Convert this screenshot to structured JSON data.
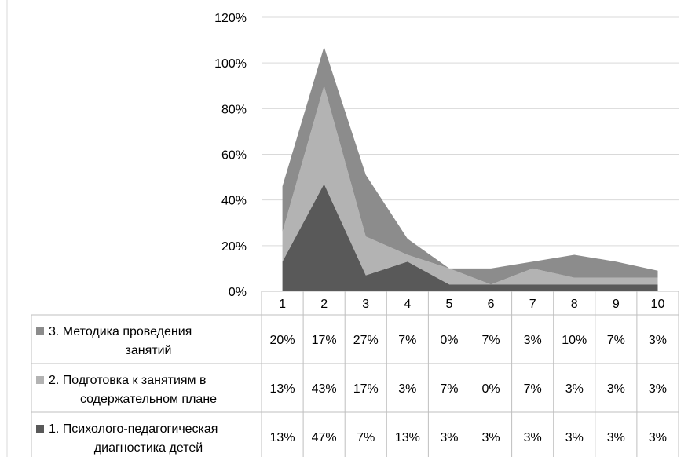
{
  "chart_data": {
    "type": "area",
    "stacked": true,
    "categories": [
      "1",
      "2",
      "3",
      "4",
      "5",
      "6",
      "7",
      "8",
      "9",
      "10"
    ],
    "ylim": [
      0,
      120
    ],
    "yticks": [
      "0%",
      "20%",
      "40%",
      "60%",
      "80%",
      "100%",
      "120%"
    ],
    "grid": true,
    "legend": "data-table",
    "series": [
      {
        "name_lines": [
          "3. Методика проведения",
          "занятий"
        ],
        "color": "#8c8c8c",
        "values": [
          20,
          17,
          27,
          7,
          0,
          7,
          3,
          10,
          7,
          3
        ],
        "labels": [
          "20%",
          "17%",
          "27%",
          "7%",
          "0%",
          "7%",
          "3%",
          "10%",
          "7%",
          "3%"
        ]
      },
      {
        "name_lines": [
          "2. Подготовка к занятиям в",
          "содержательном плане"
        ],
        "color": "#b3b3b3",
        "values": [
          13,
          43,
          17,
          3,
          7,
          0,
          7,
          3,
          3,
          3
        ],
        "labels": [
          "13%",
          "43%",
          "17%",
          "3%",
          "7%",
          "0%",
          "7%",
          "3%",
          "3%",
          "3%"
        ]
      },
      {
        "name_lines": [
          "1. Психолого-педагогическая",
          "диагностика детей"
        ],
        "color": "#595959",
        "values": [
          13,
          47,
          7,
          13,
          3,
          3,
          3,
          3,
          3,
          3
        ],
        "labels": [
          "13%",
          "47%",
          "7%",
          "13%",
          "3%",
          "3%",
          "3%",
          "3%",
          "3%",
          "3%"
        ]
      }
    ]
  }
}
